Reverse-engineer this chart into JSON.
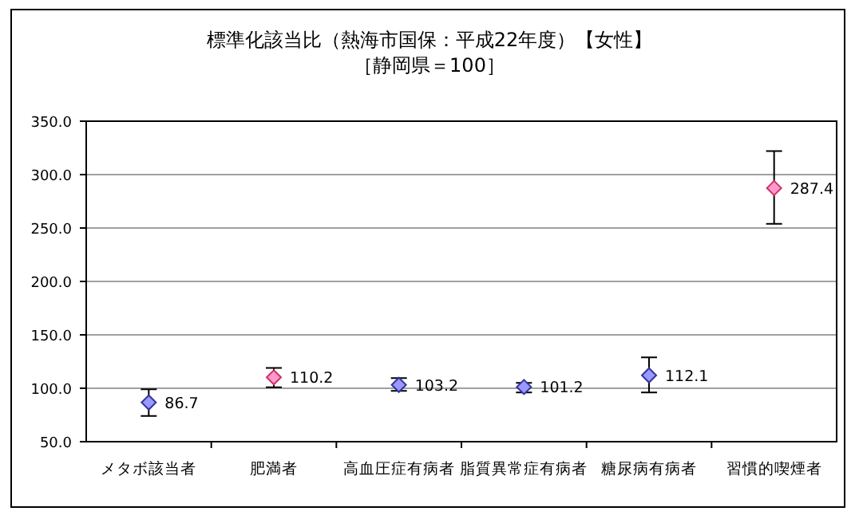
{
  "chart_data": {
    "type": "scatter",
    "title": "標準化該当比（熱海市国保：平成22年度）【女性】",
    "subtitle": "［静岡県＝100］",
    "categories": [
      "メタボ該当者",
      "肥満者",
      "高血圧症有病者",
      "脂質異常症有病者",
      "糖尿病有病者",
      "習慣的喫煙者"
    ],
    "values": [
      86.7,
      110.2,
      103.2,
      101.2,
      112.1,
      287.4
    ],
    "errors": [
      [
        74,
        99
      ],
      [
        101,
        119
      ],
      [
        97.5,
        109.5
      ],
      [
        96,
        105
      ],
      [
        96,
        129
      ],
      [
        254,
        322
      ]
    ],
    "colors": [
      "#9999ff",
      "#ff99cc",
      "#9999ff",
      "#9999ff",
      "#9999ff",
      "#ff99cc"
    ],
    "value_labels": [
      "86.7",
      "110.2",
      "103.2",
      "101.2",
      "112.1",
      "287.4"
    ],
    "marker": "diamond",
    "ylim": [
      50,
      350
    ],
    "yticks": [
      {
        "value": 50,
        "label": "50.0"
      },
      {
        "value": 100,
        "label": "100.0"
      },
      {
        "value": 150,
        "label": "150.0"
      },
      {
        "value": 200,
        "label": "200.0"
      },
      {
        "value": 250,
        "label": "250.0"
      },
      {
        "value": 300,
        "label": "300.0"
      },
      {
        "value": 350,
        "label": "350.0"
      }
    ],
    "grid": "y"
  }
}
